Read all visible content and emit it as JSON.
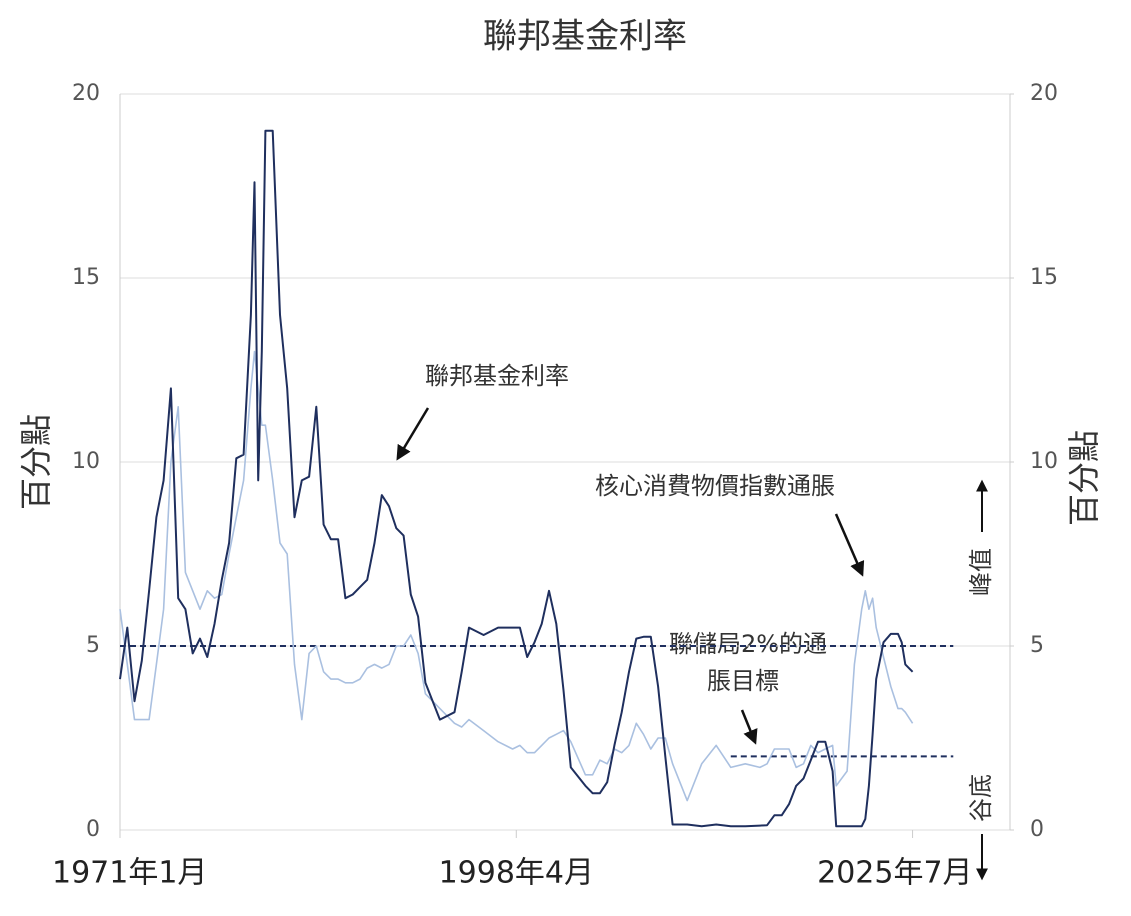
{
  "chart_data": {
    "type": "line",
    "title": "聯邦基金利率",
    "y_label": "百分點",
    "y2_label": "百分點",
    "x": [
      1971,
      1971.5,
      1972,
      1972.5,
      1973,
      1973.5,
      1974,
      1974.5,
      1975,
      1975.5,
      1976,
      1976.5,
      1977,
      1977.5,
      1978,
      1978.5,
      1979,
      1979.5,
      1980,
      1980.25,
      1980.5,
      1980.75,
      1981,
      1981.5,
      1982,
      1982.5,
      1983,
      1983.5,
      1984,
      1984.5,
      1985,
      1985.5,
      1986,
      1986.5,
      1987,
      1987.5,
      1988,
      1988.5,
      1989,
      1989.5,
      1990,
      1990.5,
      1991,
      1991.5,
      1992,
      1993,
      1994,
      1994.5,
      1995,
      1996,
      1997,
      1998,
      1998.5,
      1999,
      1999.5,
      2000,
      2000.5,
      2001,
      2001.5,
      2002,
      2003,
      2003.5,
      2004,
      2004.5,
      2005,
      2005.5,
      2006,
      2006.5,
      2007,
      2007.5,
      2008,
      2008.5,
      2009,
      2010,
      2011,
      2012,
      2013,
      2014,
      2015,
      2015.5,
      2016,
      2016.5,
      2017,
      2017.5,
      2018,
      2018.5,
      2019,
      2019.5,
      2020,
      2020.25,
      2021,
      2021.5,
      2022,
      2022.25,
      2022.5,
      2022.75,
      2023,
      2023.5,
      2024,
      2024.5,
      2024.75,
      2025,
      2025.5
    ],
    "series": [
      {
        "name": "聯邦基金利率",
        "color": "#1f2f5e",
        "width": 2,
        "values": [
          4.1,
          5.5,
          3.5,
          4.6,
          6.5,
          8.5,
          9.5,
          12,
          6.3,
          6,
          4.8,
          5.2,
          4.7,
          5.6,
          6.8,
          7.8,
          10.1,
          10.2,
          14,
          17.6,
          9.5,
          13,
          19,
          19,
          14,
          12,
          8.5,
          9.5,
          9.6,
          11.5,
          8.3,
          7.9,
          7.9,
          6.3,
          6.4,
          6.6,
          6.8,
          7.8,
          9.1,
          8.8,
          8.2,
          8,
          6.4,
          5.8,
          4,
          3,
          3.2,
          4.3,
          5.5,
          5.3,
          5.5,
          5.5,
          5.5,
          4.7,
          5.1,
          5.6,
          6.5,
          5.6,
          3.8,
          1.7,
          1.2,
          1,
          1,
          1.3,
          2.3,
          3.2,
          4.3,
          5.2,
          5.25,
          5.25,
          3.9,
          2,
          0.15,
          0.15,
          0.1,
          0.15,
          0.1,
          0.1,
          0.12,
          0.13,
          0.4,
          0.4,
          0.7,
          1.2,
          1.4,
          1.9,
          2.4,
          2.4,
          1.6,
          0.1,
          0.1,
          0.1,
          0.1,
          0.3,
          1.2,
          2.6,
          4.1,
          5.1,
          5.33,
          5.33,
          5.1,
          4.5,
          4.3
        ]
      },
      {
        "name": "核心消費物價指數通脹",
        "color": "#aac0e0",
        "width": 1.6,
        "values": [
          6,
          4.5,
          3,
          3,
          3,
          4.5,
          6,
          10,
          11.5,
          7,
          6.5,
          6,
          6.5,
          6.3,
          6.4,
          7.5,
          8.5,
          9.5,
          12,
          13,
          12,
          11,
          11,
          9.5,
          7.8,
          7.5,
          4.5,
          3,
          4.8,
          5,
          4.3,
          4.1,
          4.1,
          4,
          4,
          4.1,
          4.4,
          4.5,
          4.4,
          4.5,
          5,
          5,
          5.3,
          4.8,
          3.7,
          3.3,
          2.9,
          2.8,
          3,
          2.7,
          2.4,
          2.2,
          2.3,
          2.1,
          2.1,
          2.3,
          2.5,
          2.6,
          2.7,
          2.4,
          1.5,
          1.5,
          1.9,
          1.8,
          2.2,
          2.1,
          2.3,
          2.9,
          2.6,
          2.2,
          2.5,
          2.5,
          1.8,
          0.8,
          1.8,
          2.3,
          1.7,
          1.8,
          1.7,
          1.8,
          2.2,
          2.2,
          2.2,
          1.7,
          1.8,
          2.3,
          2.1,
          2.2,
          2.3,
          1.2,
          1.6,
          4.5,
          6,
          6.5,
          6,
          6.3,
          5.5,
          4.7,
          3.9,
          3.3,
          3.3,
          3.2,
          2.9
        ]
      }
    ],
    "xlim": [
      1971,
      2032.2
    ],
    "xticks": [
      {
        "value": 1971,
        "label": "1971年1月"
      },
      {
        "value": 1998.25,
        "label": "1998年4月"
      },
      {
        "value": 2025.5,
        "label": "2025年7月"
      }
    ],
    "ylim": [
      0,
      20
    ],
    "yticks": [
      0,
      5,
      10,
      15,
      20
    ],
    "y2lim": [
      0,
      20
    ],
    "y2ticks": [
      0,
      5,
      10,
      15,
      20
    ],
    "grid": true,
    "hlines": [
      {
        "y": 5,
        "x": [
          1971,
          2028.3
        ]
      },
      {
        "y": 2,
        "x": [
          2013,
          2028.3
        ]
      }
    ],
    "annotations": [
      {
        "text": "聯邦基金利率"
      },
      {
        "text": "核心消費物價指數通脹"
      },
      {
        "text": [
          "聯儲局2%的通",
          "脹目標"
        ]
      },
      {
        "text": "峰值"
      },
      {
        "text": "谷底"
      }
    ]
  }
}
